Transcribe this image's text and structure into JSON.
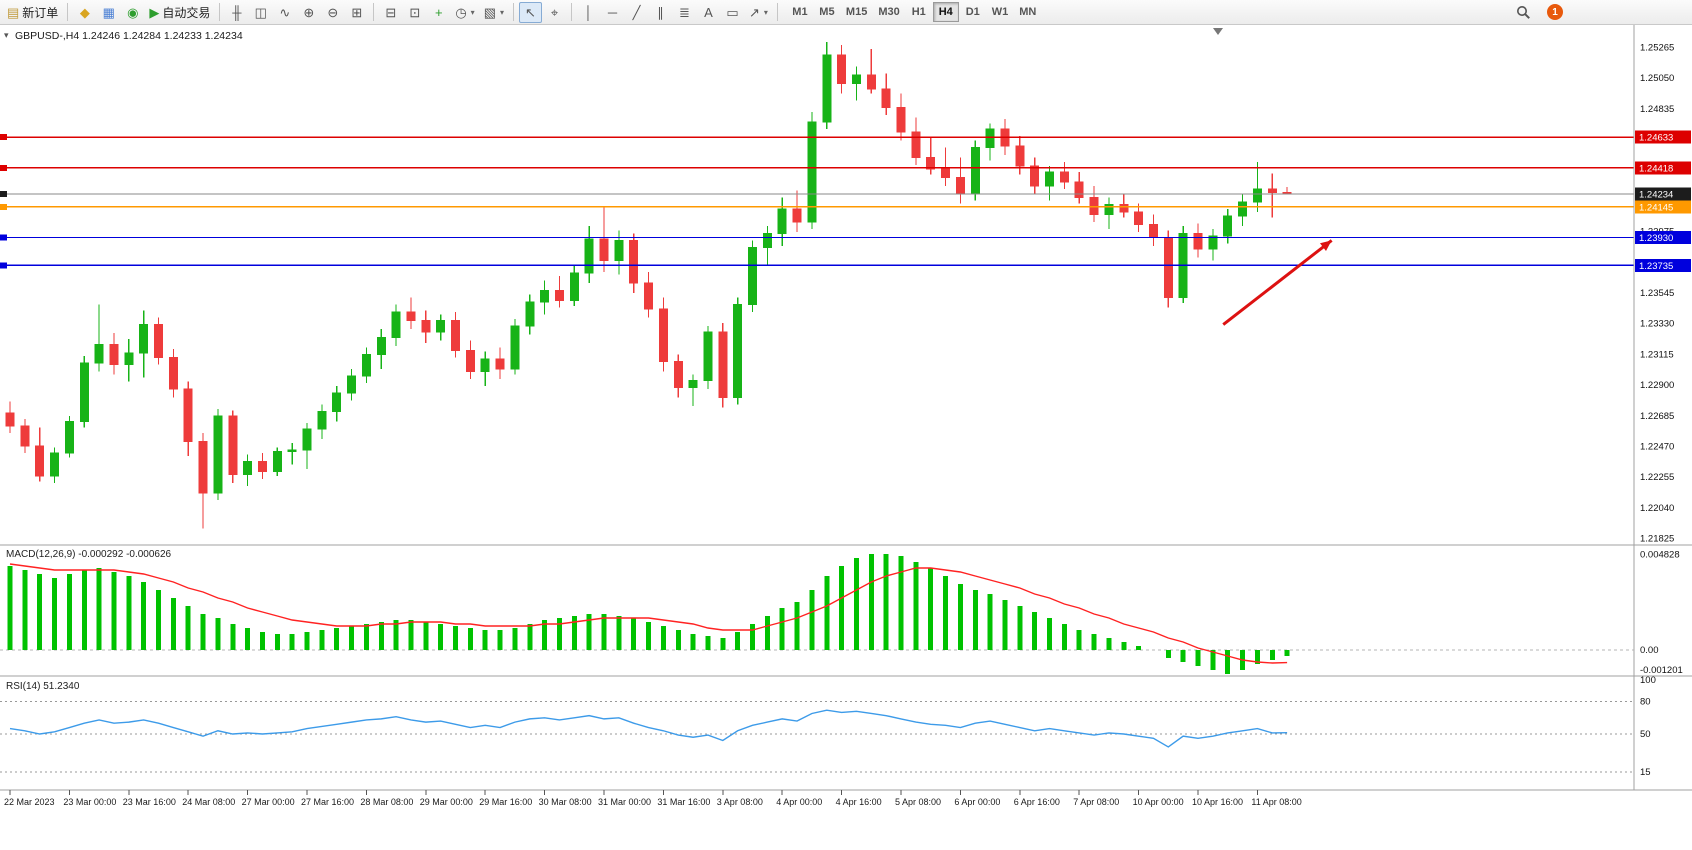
{
  "toolbar": {
    "notification_count": "1",
    "timeframes": [
      "M1",
      "M5",
      "M15",
      "M30",
      "H1",
      "H4",
      "D1",
      "W1",
      "MN"
    ],
    "active_timeframe": "H4",
    "items": [
      {
        "type": "button",
        "name": "new-order-button",
        "glyph": "▤",
        "glyph_color": "#c09a3a",
        "label": "新订单"
      },
      {
        "type": "sep"
      },
      {
        "type": "button",
        "name": "metaeditor-button",
        "glyph": "◆",
        "glyph_color": "#d9a520"
      },
      {
        "type": "button",
        "name": "data-window-button",
        "glyph": "▦",
        "glyph_color": "#4a7fd4"
      },
      {
        "type": "button",
        "name": "market-watch-button",
        "glyph": "◉",
        "glyph_color": "#2e9e2e"
      },
      {
        "type": "button",
        "name": "autotrading-button",
        "glyph": "▶",
        "glyph_color": "#2e9e2e",
        "label": "自动交易"
      },
      {
        "type": "sep"
      },
      {
        "type": "button",
        "name": "bar-chart-button",
        "glyph": "╫"
      },
      {
        "type": "button",
        "name": "candlestick-chart-button",
        "glyph": "◫"
      },
      {
        "type": "button",
        "name": "line-chart-button",
        "glyph": "∿"
      },
      {
        "type": "button",
        "name": "zoom-in-button",
        "glyph": "⊕"
      },
      {
        "type": "button",
        "name": "zoom-out-button",
        "glyph": "⊖"
      },
      {
        "type": "button",
        "name": "tile-windows-button",
        "glyph": "⊞"
      },
      {
        "type": "sep"
      },
      {
        "type": "button",
        "name": "indicators-button",
        "glyph": "⊟"
      },
      {
        "type": "button",
        "name": "indicator-list-button",
        "glyph": "⊡"
      },
      {
        "type": "button",
        "name": "add-indicator-button",
        "glyph": "+",
        "glyph_color": "#2e9e2e"
      },
      {
        "type": "button",
        "name": "periods-button",
        "glyph": "◷",
        "dropdown": true
      },
      {
        "type": "button",
        "name": "templates-button",
        "glyph": "▧",
        "dropdown": true
      },
      {
        "type": "sep"
      },
      {
        "type": "button",
        "name": "cursor-button",
        "glyph": "↖",
        "active": true
      },
      {
        "type": "button",
        "name": "crosshair-button",
        "glyph": "⌖"
      },
      {
        "type": "sep"
      },
      {
        "type": "button",
        "name": "vertical-line-button",
        "glyph": "│"
      },
      {
        "type": "button",
        "name": "horizontal-line-button",
        "glyph": "─"
      },
      {
        "type": "button",
        "name": "trendline-button",
        "glyph": "╱"
      },
      {
        "type": "button",
        "name": "channel-button",
        "glyph": "∥"
      },
      {
        "type": "button",
        "name": "fibonacci-button",
        "glyph": "≣"
      },
      {
        "type": "button",
        "name": "text-button",
        "glyph": "A"
      },
      {
        "type": "button",
        "name": "label-button",
        "glyph": "▭"
      },
      {
        "type": "button",
        "name": "shapes-button",
        "glyph": "↗",
        "dropdown": true
      },
      {
        "type": "sep"
      }
    ]
  },
  "chart_data": {
    "type": "candlestick",
    "symbol": "GBPUSD-,H4",
    "ohlc_readout": "1.24246 1.24284 1.24233 1.24234",
    "timeframe": "H4",
    "colors": {
      "bull": "#17b317",
      "bear": "#ee3b3b",
      "macd_hist": "#00c200",
      "macd_signal": "#ff2222",
      "rsi": "#3d9be9",
      "arrow": "#dd1111",
      "grid": "#a0a0a0"
    },
    "price_axis": {
      "max": 1.25265,
      "min": 1.21825,
      "labels": [
        "1.25265",
        "1.25050",
        "1.24835",
        "1.24620",
        "1.24405",
        "1.24190",
        "1.23975",
        "1.23760",
        "1.23545",
        "1.23330",
        "1.23115",
        "1.22900",
        "1.22685",
        "1.22470",
        "1.22255",
        "1.22040",
        "1.21825"
      ]
    },
    "hlines": [
      {
        "value": "1.24633",
        "price": 1.24633,
        "color": "#dd0000"
      },
      {
        "value": "1.24418",
        "price": 1.24418,
        "color": "#dd0000"
      },
      {
        "value": "1.24234",
        "price": 1.24234,
        "color": "#8a8a8a",
        "tag_color": "#1c1c1c",
        "current": true
      },
      {
        "value": "1.24145",
        "price": 1.24145,
        "color": "#ff9900"
      },
      {
        "value": "1.23930",
        "price": 1.2393,
        "color": "#0000dd"
      },
      {
        "value": "1.23735",
        "price": 1.23735,
        "color": "#0000dd"
      }
    ],
    "time_labels": [
      "22 Mar 2023",
      "23 Mar 00:00",
      "23 Mar 16:00",
      "24 Mar 08:00",
      "27 Mar 00:00",
      "27 Mar 16:00",
      "28 Mar 08:00",
      "29 Mar 00:00",
      "29 Mar 16:00",
      "30 Mar 08:00",
      "31 Mar 00:00",
      "31 Mar 16:00",
      "3 Apr 08:00",
      "4 Apr 00:00",
      "4 Apr 16:00",
      "5 Apr 08:00",
      "6 Apr 00:00",
      "6 Apr 16:00",
      "7 Apr 08:00",
      "10 Apr 00:00",
      "10 Apr 16:00",
      "11 Apr 08:00"
    ],
    "candles": [
      [
        1.227,
        1.2278,
        1.2256,
        1.2261
      ],
      [
        1.2261,
        1.2266,
        1.2242,
        1.2247
      ],
      [
        1.2247,
        1.226,
        1.2222,
        1.2226
      ],
      [
        1.2226,
        1.2246,
        1.2221,
        1.2242
      ],
      [
        1.2242,
        1.2268,
        1.2239,
        1.2264
      ],
      [
        1.2264,
        1.231,
        1.226,
        1.2305
      ],
      [
        1.2305,
        1.2346,
        1.2299,
        1.2318
      ],
      [
        1.2318,
        1.2326,
        1.2297,
        1.2304
      ],
      [
        1.2304,
        1.2322,
        1.2292,
        1.2312
      ],
      [
        1.2312,
        1.2342,
        1.2295,
        1.2332
      ],
      [
        1.2332,
        1.2337,
        1.2304,
        1.2309
      ],
      [
        1.2309,
        1.2315,
        1.2281,
        1.2287
      ],
      [
        1.2287,
        1.2292,
        1.224,
        1.225
      ],
      [
        1.225,
        1.2256,
        1.2189,
        1.2214
      ],
      [
        1.2214,
        1.2273,
        1.2209,
        1.2268
      ],
      [
        1.2268,
        1.2272,
        1.2221,
        1.2227
      ],
      [
        1.2227,
        1.2241,
        1.2219,
        1.2236
      ],
      [
        1.2236,
        1.2242,
        1.2224,
        1.2229
      ],
      [
        1.2229,
        1.2246,
        1.2226,
        1.2243
      ],
      [
        1.2243,
        1.2249,
        1.2234,
        1.2244
      ],
      [
        1.2244,
        1.2263,
        1.2231,
        1.2259
      ],
      [
        1.2259,
        1.2276,
        1.2252,
        1.2271
      ],
      [
        1.2271,
        1.2289,
        1.2264,
        1.2284
      ],
      [
        1.2284,
        1.2301,
        1.2279,
        1.2296
      ],
      [
        1.2296,
        1.2316,
        1.2291,
        1.2311
      ],
      [
        1.2311,
        1.2329,
        1.2301,
        1.2323
      ],
      [
        1.2323,
        1.2346,
        1.2317,
        1.2341
      ],
      [
        1.2341,
        1.2351,
        1.2329,
        1.2335
      ],
      [
        1.2335,
        1.2342,
        1.2319,
        1.2327
      ],
      [
        1.2327,
        1.2339,
        1.2321,
        1.2335
      ],
      [
        1.2335,
        1.2341,
        1.2309,
        1.2314
      ],
      [
        1.2314,
        1.2321,
        1.2294,
        1.2299
      ],
      [
        1.2299,
        1.2313,
        1.2289,
        1.2308
      ],
      [
        1.2308,
        1.2316,
        1.2294,
        1.2301
      ],
      [
        1.2301,
        1.2336,
        1.2297,
        1.2331
      ],
      [
        1.2331,
        1.2353,
        1.2325,
        1.2348
      ],
      [
        1.2348,
        1.2363,
        1.2339,
        1.2356
      ],
      [
        1.2356,
        1.2366,
        1.2344,
        1.2349
      ],
      [
        1.2349,
        1.2373,
        1.2345,
        1.2368
      ],
      [
        1.2368,
        1.2401,
        1.2361,
        1.2392
      ],
      [
        1.2392,
        1.2415,
        1.2369,
        1.2377
      ],
      [
        1.2377,
        1.2398,
        1.2367,
        1.2391
      ],
      [
        1.2391,
        1.2396,
        1.2354,
        1.2361
      ],
      [
        1.2361,
        1.2369,
        1.2337,
        1.2343
      ],
      [
        1.2343,
        1.2351,
        1.2299,
        1.2306
      ],
      [
        1.2306,
        1.2311,
        1.2281,
        1.2288
      ],
      [
        1.2288,
        1.2297,
        1.2275,
        1.2293
      ],
      [
        1.2293,
        1.2331,
        1.2287,
        1.2327
      ],
      [
        1.2327,
        1.2333,
        1.2274,
        1.2281
      ],
      [
        1.2281,
        1.2351,
        1.2276,
        1.2346
      ],
      [
        1.2346,
        1.2391,
        1.2341,
        1.2386
      ],
      [
        1.2386,
        1.2401,
        1.2374,
        1.2396
      ],
      [
        1.2396,
        1.2421,
        1.2387,
        1.2413
      ],
      [
        1.2413,
        1.2426,
        1.2397,
        1.2404
      ],
      [
        1.2404,
        1.2481,
        1.2399,
        1.2474
      ],
      [
        1.2474,
        1.253,
        1.2469,
        1.2521
      ],
      [
        1.2521,
        1.2528,
        1.2494,
        1.2501
      ],
      [
        1.2501,
        1.2513,
        1.2489,
        1.2507
      ],
      [
        1.2507,
        1.2525,
        1.2494,
        1.2497
      ],
      [
        1.2497,
        1.2508,
        1.2479,
        1.2484
      ],
      [
        1.2484,
        1.2494,
        1.2461,
        1.2467
      ],
      [
        1.2467,
        1.2477,
        1.2444,
        1.2449
      ],
      [
        1.2449,
        1.2463,
        1.2437,
        1.2441
      ],
      [
        1.2441,
        1.2456,
        1.2429,
        1.2435
      ],
      [
        1.2435,
        1.2449,
        1.2417,
        1.2424
      ],
      [
        1.2424,
        1.2461,
        1.2419,
        1.2456
      ],
      [
        1.2456,
        1.2473,
        1.2447,
        1.2469
      ],
      [
        1.2469,
        1.2476,
        1.2451,
        1.2457
      ],
      [
        1.2457,
        1.2464,
        1.2437,
        1.2443
      ],
      [
        1.2443,
        1.2449,
        1.2424,
        1.2429
      ],
      [
        1.2429,
        1.2443,
        1.2419,
        1.2439
      ],
      [
        1.2439,
        1.2446,
        1.2427,
        1.2432
      ],
      [
        1.2432,
        1.2439,
        1.2417,
        1.2421
      ],
      [
        1.2421,
        1.2429,
        1.2404,
        1.2409
      ],
      [
        1.2409,
        1.2421,
        1.2399,
        1.2416
      ],
      [
        1.2416,
        1.2423,
        1.2407,
        1.2411
      ],
      [
        1.2411,
        1.2417,
        1.2397,
        1.2402
      ],
      [
        1.2402,
        1.2409,
        1.2387,
        1.2393
      ],
      [
        1.2393,
        1.2398,
        1.2344,
        1.2351
      ],
      [
        1.2351,
        1.2401,
        1.2347,
        1.2396
      ],
      [
        1.2396,
        1.2403,
        1.2379,
        1.2385
      ],
      [
        1.2385,
        1.2399,
        1.2377,
        1.2394
      ],
      [
        1.2394,
        1.2413,
        1.2389,
        1.2408
      ],
      [
        1.2408,
        1.2423,
        1.2401,
        1.2418
      ],
      [
        1.2418,
        1.2446,
        1.2411,
        1.2427
      ],
      [
        1.2427,
        1.2438,
        1.2407,
        1.24246
      ],
      [
        1.24246,
        1.24284,
        1.24233,
        1.24234
      ]
    ],
    "macd": {
      "label": "MACD(12,26,9) -0.000292 -0.000626",
      "scale_labels": [
        "0.004828",
        "0.00",
        "-0.001201"
      ],
      "max": 0.004828,
      "min": -0.001201,
      "histogram": [
        0.0042,
        0.004,
        0.0038,
        0.0036,
        0.0038,
        0.004,
        0.0041,
        0.0039,
        0.0037,
        0.0034,
        0.003,
        0.0026,
        0.0022,
        0.0018,
        0.0016,
        0.0013,
        0.0011,
        0.0009,
        0.0008,
        0.0008,
        0.0009,
        0.001,
        0.0011,
        0.0012,
        0.0013,
        0.0014,
        0.0015,
        0.0015,
        0.0014,
        0.0013,
        0.0012,
        0.0011,
        0.001,
        0.001,
        0.0011,
        0.0013,
        0.0015,
        0.0016,
        0.0017,
        0.0018,
        0.0018,
        0.0017,
        0.0016,
        0.0014,
        0.0012,
        0.001,
        0.0008,
        0.0007,
        0.0006,
        0.0009,
        0.0013,
        0.0017,
        0.0021,
        0.0024,
        0.003,
        0.0037,
        0.0042,
        0.0046,
        0.0048,
        0.0048,
        0.0047,
        0.0044,
        0.0041,
        0.0037,
        0.0033,
        0.003,
        0.0028,
        0.0025,
        0.0022,
        0.0019,
        0.0016,
        0.0013,
        0.001,
        0.0008,
        0.0006,
        0.0004,
        0.0002,
        0.0,
        -0.0004,
        -0.0006,
        -0.0008,
        -0.001,
        -0.0012,
        -0.001,
        -0.0007,
        -0.0005,
        -0.000292
      ],
      "signal": [
        0.0043,
        0.0042,
        0.0041,
        0.004,
        0.004,
        0.004,
        0.004,
        0.004,
        0.0039,
        0.0038,
        0.0036,
        0.0034,
        0.0031,
        0.0029,
        0.0026,
        0.0024,
        0.0021,
        0.0019,
        0.0017,
        0.0015,
        0.0014,
        0.0013,
        0.0012,
        0.0012,
        0.0012,
        0.0013,
        0.0013,
        0.0014,
        0.0014,
        0.0014,
        0.0013,
        0.0013,
        0.0012,
        0.0012,
        0.0012,
        0.0012,
        0.0013,
        0.0013,
        0.0014,
        0.0015,
        0.0016,
        0.0016,
        0.0016,
        0.0016,
        0.0015,
        0.0014,
        0.0013,
        0.0011,
        0.001,
        0.001,
        0.001,
        0.0012,
        0.0014,
        0.0016,
        0.0019,
        0.0022,
        0.0026,
        0.003,
        0.0034,
        0.0037,
        0.0039,
        0.0041,
        0.0041,
        0.004,
        0.0039,
        0.0037,
        0.0035,
        0.0033,
        0.0031,
        0.0028,
        0.0026,
        0.0023,
        0.0021,
        0.0018,
        0.0016,
        0.0013,
        0.0011,
        0.0009,
        0.0006,
        0.0004,
        0.0001,
        -0.0001,
        -0.0003,
        -0.0005,
        -0.0006,
        -0.00065,
        -0.000626
      ]
    },
    "rsi": {
      "label": "RSI(14) 51.2340",
      "scale_labels": [
        "100",
        "80",
        "50",
        "15"
      ],
      "levels": [
        80,
        50,
        15
      ],
      "values": [
        55,
        53,
        50,
        52,
        56,
        60,
        63,
        60,
        61,
        63,
        60,
        56,
        52,
        48,
        53,
        50,
        51,
        50,
        51,
        52,
        55,
        57,
        59,
        61,
        63,
        64,
        66,
        63,
        61,
        62,
        59,
        56,
        58,
        56,
        61,
        64,
        65,
        63,
        65,
        67,
        64,
        65,
        60,
        56,
        53,
        49,
        47,
        49,
        44,
        53,
        58,
        61,
        64,
        62,
        69,
        72,
        70,
        71,
        69,
        67,
        64,
        61,
        59,
        58,
        56,
        60,
        62,
        59,
        56,
        53,
        55,
        53,
        51,
        49,
        51,
        50,
        48,
        46,
        38,
        48,
        46,
        48,
        51,
        53,
        55,
        51,
        51.23
      ]
    },
    "arrow": {
      "from": {
        "index": 81.7,
        "price": 1.2332
      },
      "to": {
        "index": 89,
        "price": 1.2391
      },
      "color": "#dd1111"
    }
  }
}
